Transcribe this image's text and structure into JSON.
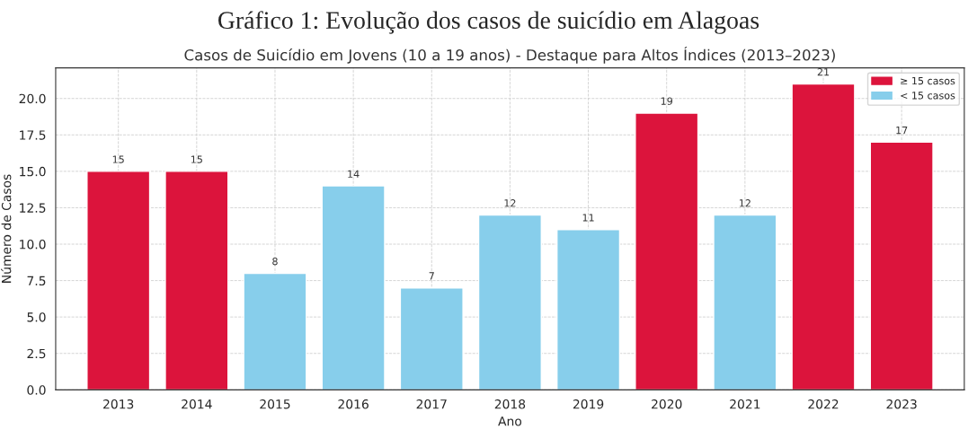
{
  "chart_data": {
    "type": "bar",
    "title": "Gráfico 1: Evolução dos casos de suicídio em Alagoas",
    "subtitle": "Casos de Suicídio em Jovens (10 a 19 anos) - Destaque para Altos Índices (2013–2023)",
    "xlabel": "Ano",
    "ylabel": "Número de Casos",
    "categories": [
      "2013",
      "2014",
      "2015",
      "2016",
      "2017",
      "2018",
      "2019",
      "2020",
      "2021",
      "2022",
      "2023"
    ],
    "series": [
      {
        "name": "≥ 15 casos",
        "color": "#dc143c",
        "values": [
          15,
          15,
          null,
          null,
          null,
          null,
          null,
          19,
          null,
          21,
          17
        ]
      },
      {
        "name": "< 15 casos",
        "color": "#87ceeb",
        "values": [
          null,
          null,
          8,
          14,
          7,
          12,
          11,
          null,
          12,
          null,
          null
        ]
      }
    ],
    "ylim": [
      0,
      22.1
    ],
    "yticks": [
      {
        "value": 0,
        "label": "0.0"
      },
      {
        "value": 2.5,
        "label": "2.5"
      },
      {
        "value": 5,
        "label": "5.0"
      },
      {
        "value": 7.5,
        "label": "7.5"
      },
      {
        "value": 10,
        "label": "10.0"
      },
      {
        "value": 12.5,
        "label": "12.5"
      },
      {
        "value": 15,
        "label": "15.0"
      },
      {
        "value": 17.5,
        "label": "17.5"
      },
      {
        "value": 20,
        "label": "20.0"
      }
    ],
    "grid": true,
    "legend": "top right",
    "data_labels": true
  }
}
